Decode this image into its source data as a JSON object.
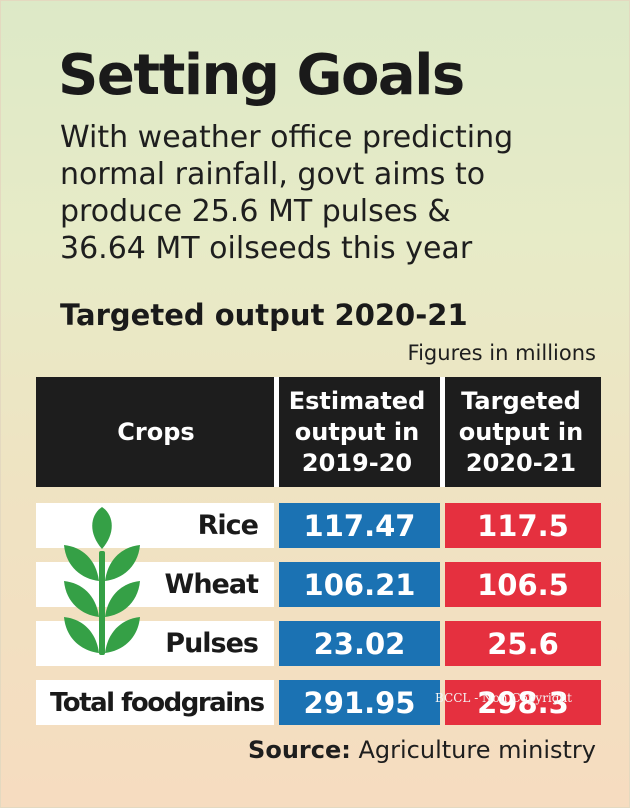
{
  "title": "Setting Goals",
  "subtitle_lines": [
    "With weather office predicting",
    "normal rainfall, govt aims to",
    "produce 25.6 MT pulses &",
    "36.64 MT oilseeds this year"
  ],
  "section_title": "Targeted output 2020-21",
  "unit_note": "Figures in millions",
  "table": {
    "headers": {
      "crops": "Crops",
      "estimated": [
        "Estimated",
        "output in",
        "2019-20"
      ],
      "targeted": [
        "Targeted",
        "output in",
        "2020-21"
      ]
    },
    "rows": [
      {
        "crop": "Rice",
        "estimated": "117.47",
        "targeted": "117.5"
      },
      {
        "crop": "Wheat",
        "estimated": "106.21",
        "targeted": "106.5"
      },
      {
        "crop": "Pulses",
        "estimated": "23.02",
        "targeted": "25.6"
      },
      {
        "crop": "Total foodgrains",
        "estimated": "291.95",
        "targeted": "298.3"
      }
    ]
  },
  "watermark": "BCCL - Non Copyright",
  "source": {
    "label": "Source:",
    "text": " Agriculture ministry"
  },
  "icons": [
    "wheat-plant-icon"
  ],
  "colors": {
    "estimated": "#1b72b3",
    "targeted": "#e5303f",
    "header": "#1d1d1d",
    "plant": "#35a046"
  }
}
